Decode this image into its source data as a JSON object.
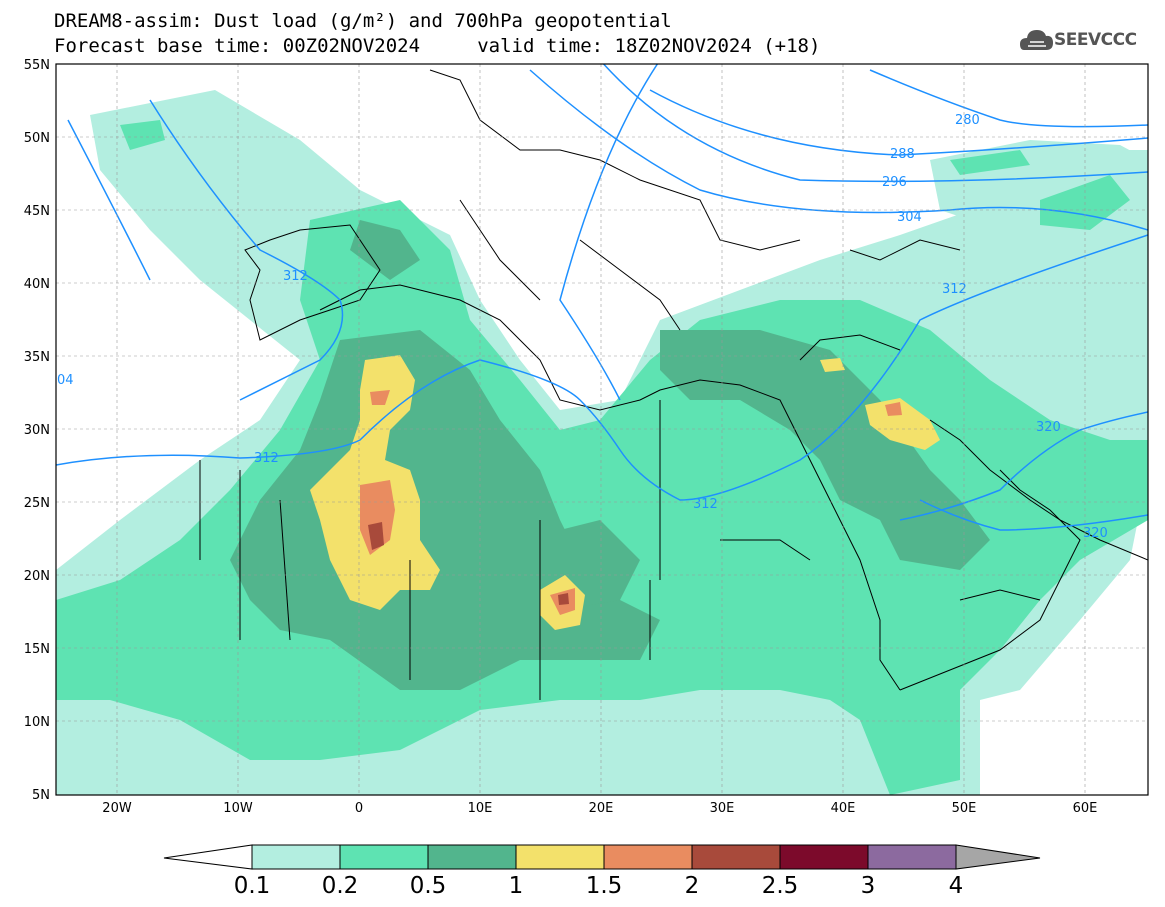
{
  "title": {
    "line1": "DREAM8-assim: Dust load (g/m²) and 700hPa geopotential",
    "line2": "Forecast base time: 00Z02NOV2024     valid time: 18Z02NOV2024 (+18)"
  },
  "logo": {
    "text": "SEEVCCC",
    "icon": "cloud-icon"
  },
  "map": {
    "lon_range": [
      -25,
      65
    ],
    "lat_range": [
      5,
      55
    ],
    "lat_labels": [
      "55N",
      "50N",
      "45N",
      "40N",
      "35N",
      "30N",
      "25N",
      "20N",
      "15N",
      "10N",
      "5N"
    ],
    "lon_labels": [
      "20W",
      "10W",
      "0",
      "10E",
      "20E",
      "30E",
      "40E",
      "50E",
      "60E"
    ],
    "contour_color": "#1e90ff",
    "contour_labels": [
      "280",
      "288",
      "296",
      "304",
      "312",
      "312",
      "312",
      "312",
      "320",
      "320",
      "04"
    ]
  },
  "colorbar": {
    "labels": [
      "0.1",
      "0.2",
      "0.5",
      "1",
      "1.5",
      "2",
      "2.5",
      "3",
      "4"
    ],
    "colors": [
      "#b3eee0",
      "#5ee3b2",
      "#52b58d",
      "#f3e16b",
      "#e98c60",
      "#a84a3b",
      "#7c0a2b",
      "#8c6a9f",
      "#a6a6a6"
    ]
  }
}
